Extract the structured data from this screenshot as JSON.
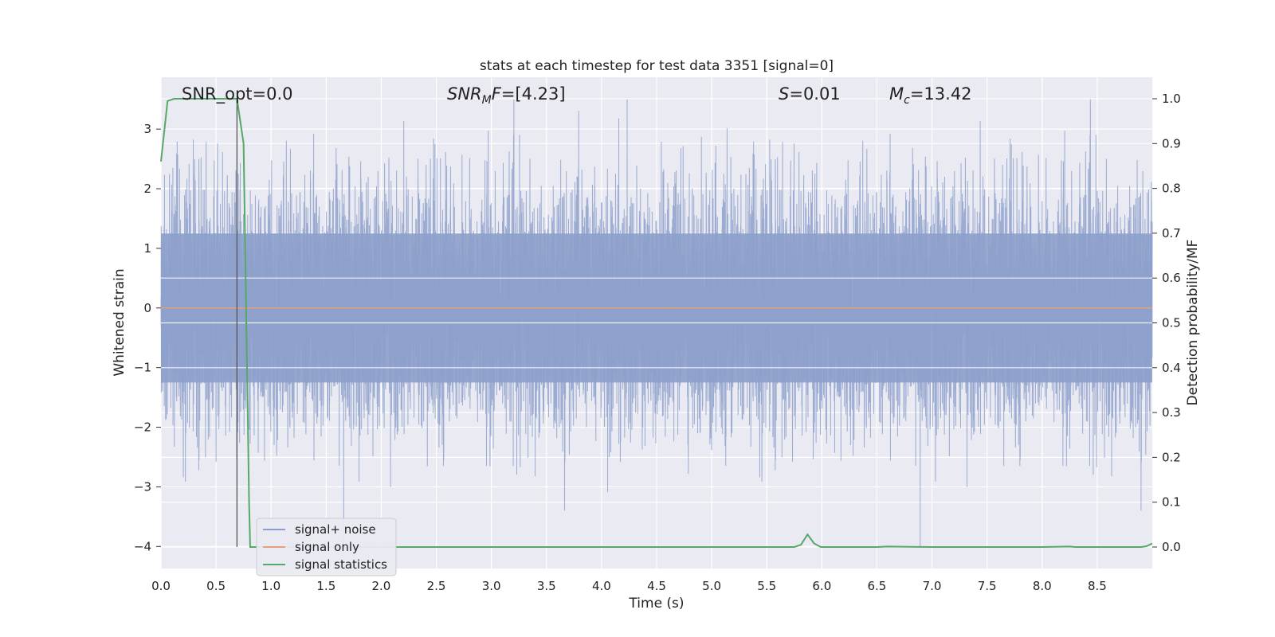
{
  "chart_data": {
    "type": "line",
    "title": "stats at each timestep for test data 3351 [signal=0]",
    "xlabel": "Time (s)",
    "ylabel": "Whitened strain",
    "y2label": "Detection probability/MF",
    "xlim": [
      0,
      9.0
    ],
    "ylim": [
      -4.37,
      3.87
    ],
    "y2lim": [
      -0.048,
      1.048
    ],
    "x_ticks": [
      "0.0",
      "0.5",
      "1.0",
      "1.5",
      "2.0",
      "2.5",
      "3.0",
      "3.5",
      "4.0",
      "4.5",
      "5.0",
      "5.5",
      "6.0",
      "6.5",
      "7.0",
      "7.5",
      "8.0",
      "8.5"
    ],
    "y_ticks": [
      "−4",
      "−3",
      "−2",
      "−1",
      "0",
      "1",
      "2",
      "3"
    ],
    "y2_ticks": [
      "0.0",
      "0.1",
      "0.2",
      "0.3",
      "0.4",
      "0.5",
      "0.6",
      "0.7",
      "0.8",
      "0.9",
      "1.0"
    ],
    "grid": true,
    "legend": {
      "placement": "lower-left"
    },
    "annotations": {
      "snr_opt": "SNR_opt=0.0",
      "snr_mf_base": "SNR",
      "snr_mf_sub": "M",
      "snr_mf_rest": "F=[4.23]",
      "s_base": "S",
      "s_rest": "=0.01",
      "mc_base": "M",
      "mc_sub": "c",
      "mc_rest": "=13.42"
    },
    "marker_line_x": 0.69,
    "series": [
      {
        "name": "signal+ noise",
        "axis": "left",
        "color": "#8da0cb",
        "description_values": "dense noise, roughly bounded",
        "seed": 3351,
        "sample_count": 9000,
        "amplitude_core": 1.25
      },
      {
        "name": "signal only",
        "axis": "left",
        "color": "#e5a07a",
        "x": [
          0,
          9.0
        ],
        "y": [
          0,
          0
        ]
      },
      {
        "name": "signal statistics",
        "axis": "right",
        "color": "#55a868",
        "x": [
          0.0,
          0.06,
          0.12,
          0.18,
          0.25,
          0.31,
          0.37,
          0.43,
          0.5,
          0.56,
          0.62,
          0.68,
          0.69,
          0.75,
          0.8,
          0.81,
          0.87,
          0.93,
          1.5,
          2.5,
          3.5,
          4.5,
          5.5,
          5.75,
          5.81,
          5.87,
          5.93,
          5.99,
          6.05,
          6.5,
          6.6,
          7.0,
          7.5,
          8.0,
          8.25,
          8.3,
          8.5,
          8.9,
          8.95,
          9.0
        ],
        "y": [
          0.86,
          0.995,
          1.0,
          1.0,
          1.0,
          1.0,
          1.0,
          1.0,
          1.0,
          1.0,
          1.0,
          1.0,
          1.0,
          0.9,
          0.1,
          0.0,
          0.0,
          0.0,
          0.0,
          0.0,
          0.0,
          0.0,
          0.0,
          0.0,
          0.005,
          0.028,
          0.008,
          0.0,
          0.0,
          0.0,
          0.001,
          0.0,
          0.0,
          0.0,
          0.001,
          0.0,
          0.0,
          0.0,
          0.002,
          0.008
        ]
      }
    ]
  }
}
